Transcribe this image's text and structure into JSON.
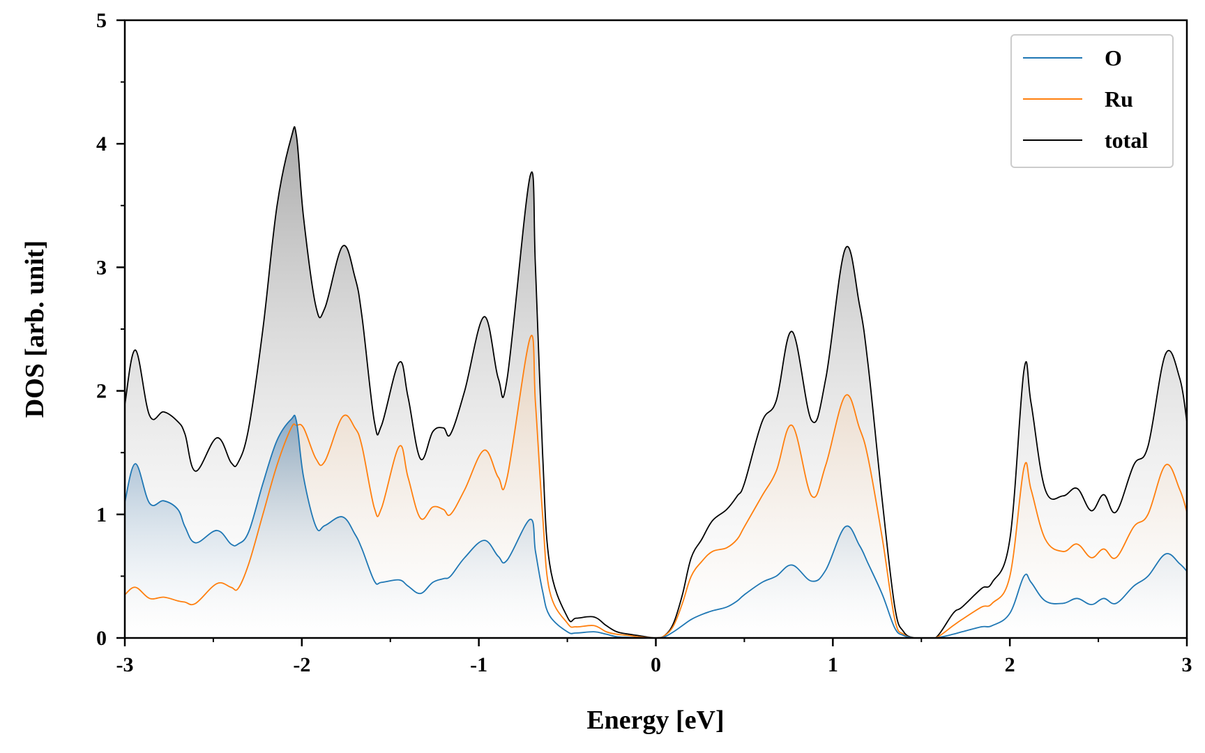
{
  "chart_data": {
    "type": "area",
    "title": "",
    "xlabel": "Energy [eV]",
    "ylabel": "DOS [arb. unit]",
    "xlim": [
      -3,
      3
    ],
    "ylim": [
      0,
      5
    ],
    "xticks": [
      "-3",
      "-2",
      "-1",
      "0",
      "1",
      "2",
      "3"
    ],
    "yticks": [
      "0",
      "1",
      "2",
      "3",
      "4",
      "5"
    ],
    "legend_position": "top-right",
    "grid": false,
    "x": [
      -3.0,
      -2.94,
      -2.86,
      -2.78,
      -2.7,
      -2.66,
      -2.6,
      -2.48,
      -2.4,
      -2.36,
      -2.3,
      -2.22,
      -2.14,
      -2.06,
      -2.03,
      -1.99,
      -1.92,
      -1.87,
      -1.77,
      -1.7,
      -1.66,
      -1.59,
      -1.55,
      -1.45,
      -1.4,
      -1.33,
      -1.26,
      -1.2,
      -1.16,
      -1.08,
      -0.97,
      -0.89,
      -0.84,
      -0.71,
      -0.68,
      -0.64,
      -0.6,
      -0.5,
      -0.45,
      -0.35,
      -0.28,
      -0.22,
      -0.15,
      -0.1,
      0.0,
      0.05,
      0.1,
      0.15,
      0.2,
      0.26,
      0.32,
      0.4,
      0.46,
      0.5,
      0.6,
      0.68,
      0.77,
      0.88,
      0.96,
      1.07,
      1.15,
      1.2,
      1.28,
      1.35,
      1.4,
      1.46,
      1.5,
      1.58,
      1.68,
      1.73,
      1.84,
      1.9,
      2.0,
      2.08,
      2.12,
      2.2,
      2.3,
      2.38,
      2.46,
      2.53,
      2.6,
      2.7,
      2.78,
      2.88,
      2.96,
      3.0
    ],
    "series": [
      {
        "name": "O",
        "values": [
          1.1,
          1.41,
          1.09,
          1.11,
          1.04,
          0.9,
          0.77,
          0.87,
          0.76,
          0.76,
          0.86,
          1.25,
          1.6,
          1.77,
          1.75,
          1.3,
          0.9,
          0.91,
          0.98,
          0.84,
          0.72,
          0.46,
          0.45,
          0.47,
          0.42,
          0.36,
          0.45,
          0.48,
          0.5,
          0.65,
          0.79,
          0.66,
          0.63,
          0.96,
          0.7,
          0.38,
          0.18,
          0.05,
          0.04,
          0.05,
          0.03,
          0.01,
          0.005,
          0.002,
          0.0,
          0.01,
          0.05,
          0.1,
          0.15,
          0.19,
          0.22,
          0.25,
          0.3,
          0.35,
          0.45,
          0.5,
          0.59,
          0.46,
          0.55,
          0.9,
          0.75,
          0.6,
          0.35,
          0.08,
          0.02,
          0.0,
          0.0,
          0.0,
          0.03,
          0.05,
          0.09,
          0.1,
          0.2,
          0.5,
          0.45,
          0.3,
          0.28,
          0.32,
          0.27,
          0.32,
          0.28,
          0.42,
          0.5,
          0.68,
          0.6,
          0.54
        ]
      },
      {
        "name": "Ru",
        "values": [
          0.35,
          0.41,
          0.32,
          0.33,
          0.3,
          0.29,
          0.28,
          0.44,
          0.41,
          0.4,
          0.6,
          1.0,
          1.4,
          1.7,
          1.72,
          1.7,
          1.45,
          1.43,
          1.79,
          1.7,
          1.55,
          1.05,
          1.05,
          1.55,
          1.3,
          0.97,
          1.06,
          1.04,
          1.0,
          1.2,
          1.52,
          1.3,
          1.3,
          2.43,
          1.9,
          1.0,
          0.38,
          0.12,
          0.09,
          0.1,
          0.05,
          0.03,
          0.02,
          0.01,
          0.0,
          0.02,
          0.1,
          0.28,
          0.5,
          0.62,
          0.7,
          0.73,
          0.8,
          0.9,
          1.15,
          1.35,
          1.72,
          1.15,
          1.4,
          1.96,
          1.7,
          1.45,
          0.8,
          0.15,
          0.03,
          0.0,
          0.0,
          0.0,
          0.1,
          0.15,
          0.25,
          0.28,
          0.5,
          1.38,
          1.2,
          0.8,
          0.7,
          0.76,
          0.65,
          0.72,
          0.65,
          0.9,
          1.0,
          1.4,
          1.2,
          1.02
        ]
      },
      {
        "name": "total",
        "values": [
          1.89,
          2.33,
          1.8,
          1.83,
          1.75,
          1.65,
          1.35,
          1.62,
          1.42,
          1.42,
          1.7,
          2.5,
          3.5,
          4.05,
          4.06,
          3.4,
          2.68,
          2.67,
          3.17,
          2.92,
          2.6,
          1.75,
          1.72,
          2.23,
          1.95,
          1.45,
          1.67,
          1.7,
          1.65,
          2.0,
          2.6,
          2.1,
          2.1,
          3.74,
          3.0,
          1.5,
          0.6,
          0.17,
          0.16,
          0.17,
          0.1,
          0.05,
          0.03,
          0.02,
          0.0,
          0.02,
          0.12,
          0.35,
          0.65,
          0.8,
          0.95,
          1.04,
          1.15,
          1.25,
          1.75,
          1.92,
          2.48,
          1.76,
          2.1,
          3.15,
          2.7,
          2.2,
          1.1,
          0.25,
          0.05,
          0.0,
          0.0,
          0.0,
          0.2,
          0.25,
          0.4,
          0.45,
          0.8,
          2.17,
          1.9,
          1.2,
          1.15,
          1.21,
          1.03,
          1.16,
          1.02,
          1.4,
          1.55,
          2.3,
          2.1,
          1.75
        ]
      }
    ]
  },
  "colors": {
    "O": "#1f77b4",
    "Ru": "#ff7f0e",
    "total": "#000000",
    "fill_total": "#b0b0b0",
    "fill_ru": "#e8c8aa",
    "fill_o": "#5a8ab4"
  }
}
